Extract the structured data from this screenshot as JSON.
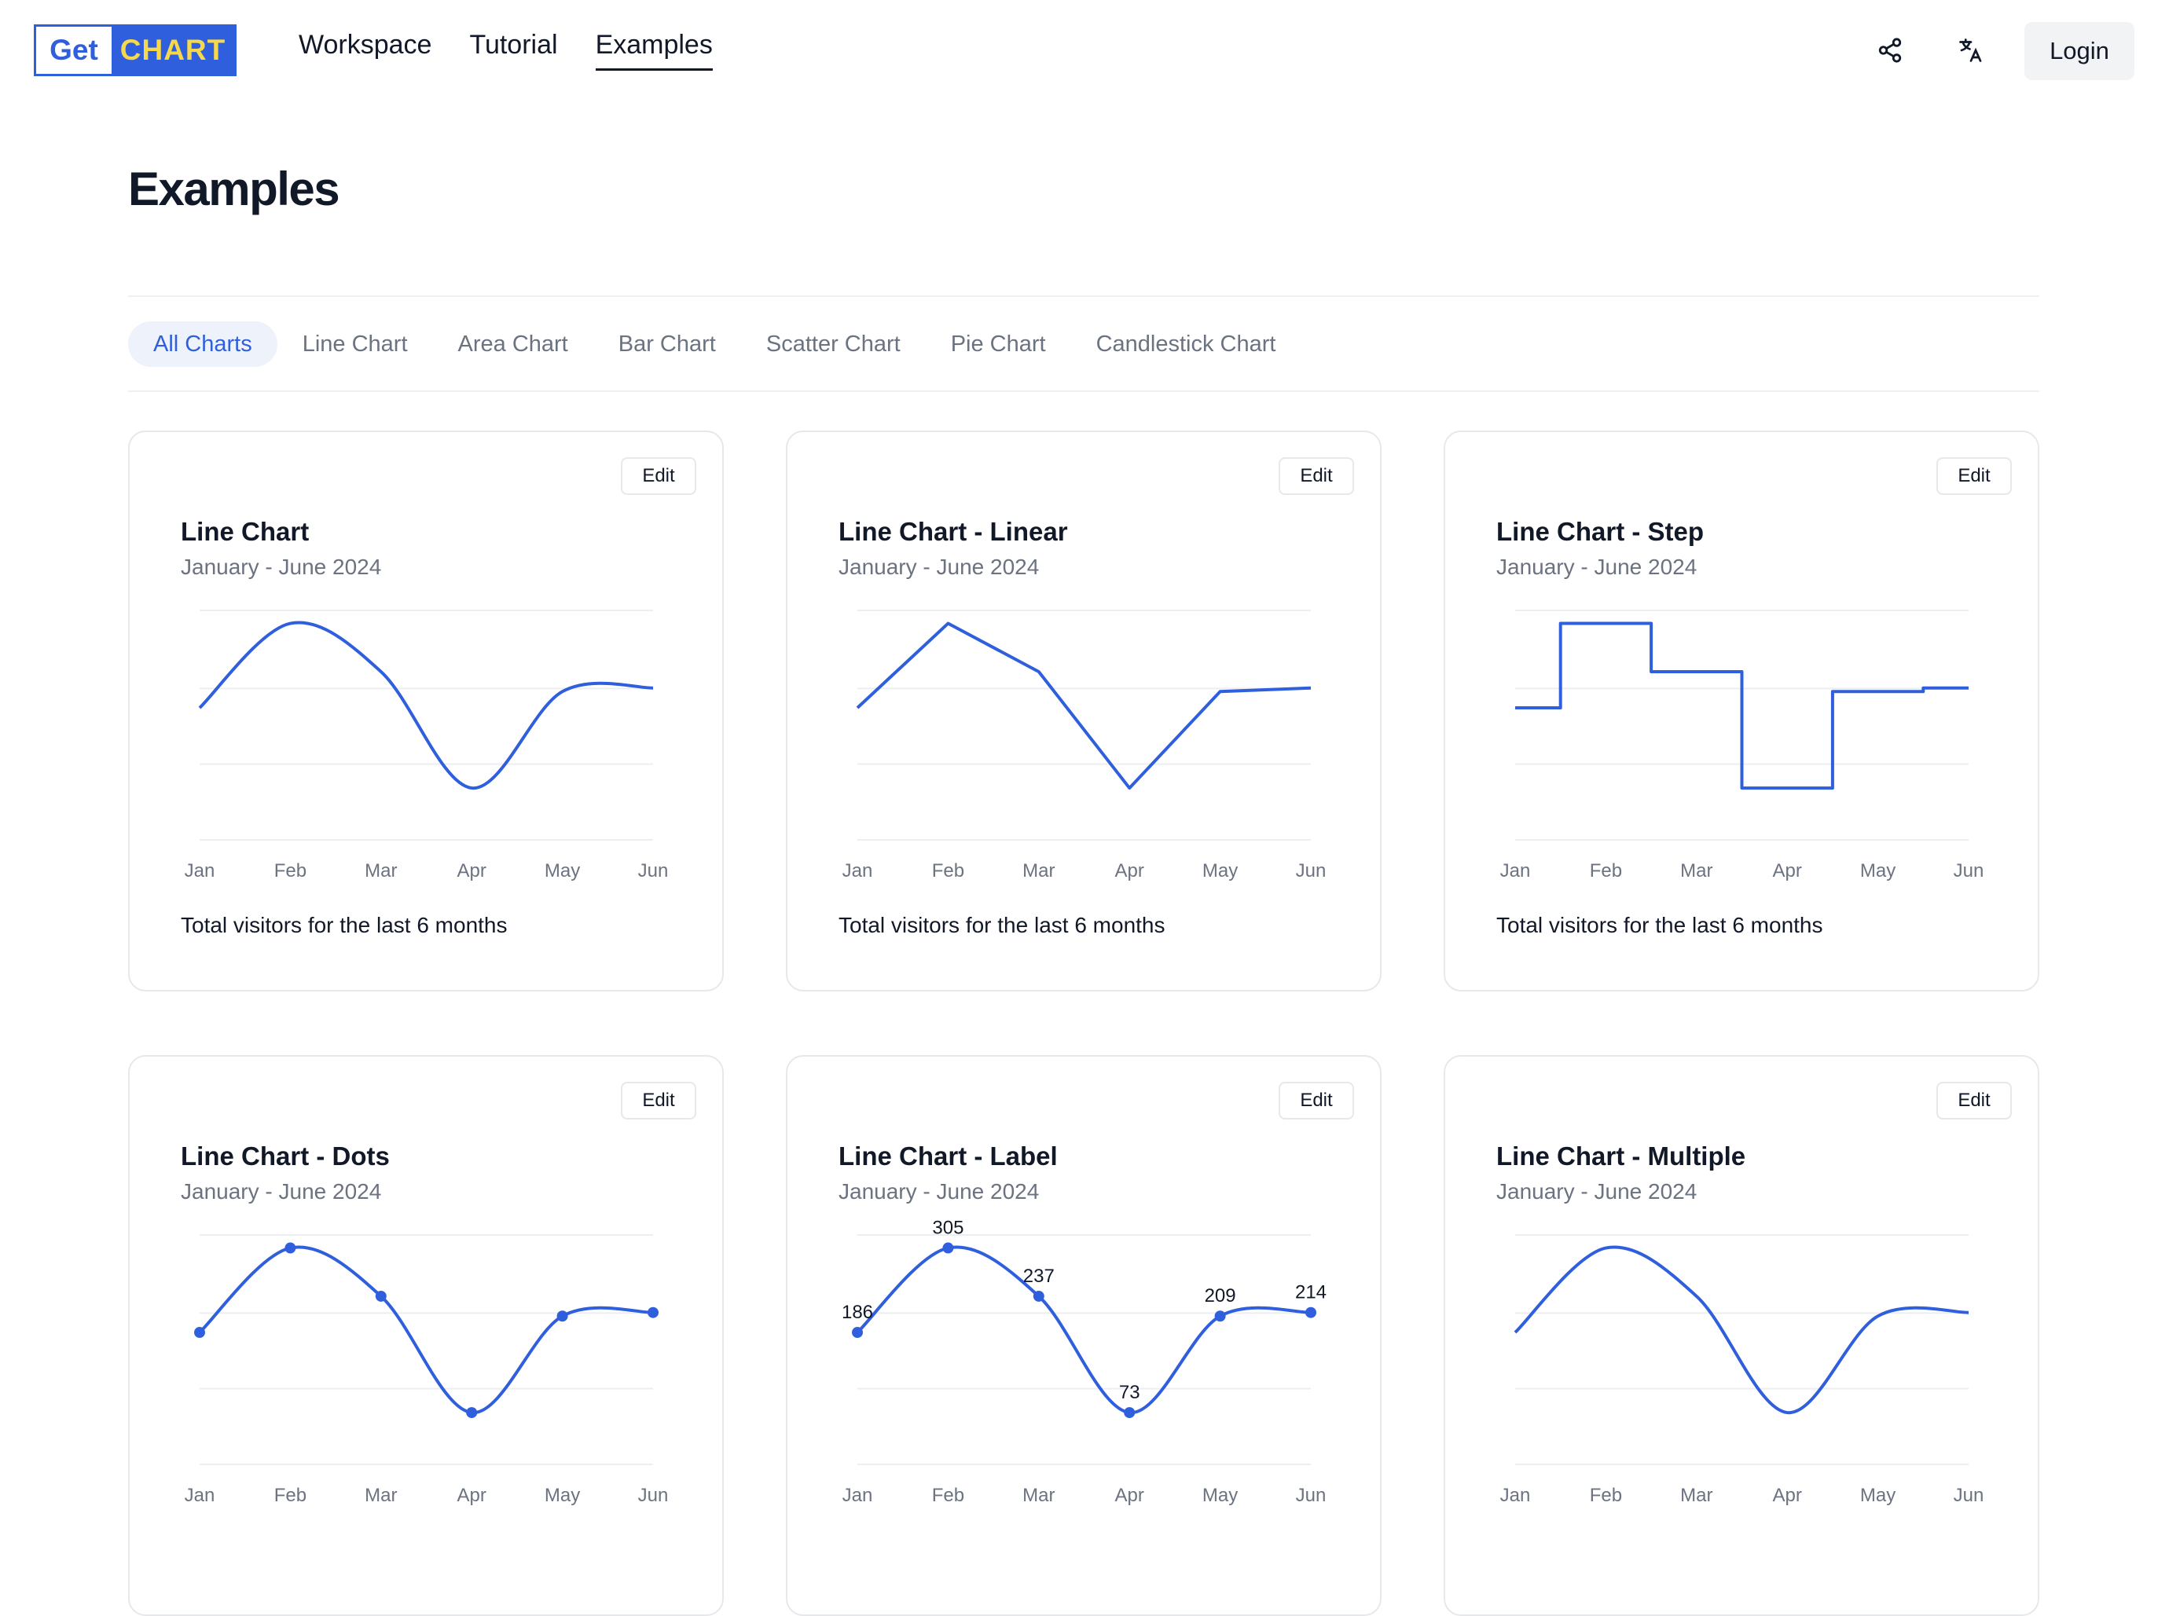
{
  "nav": {
    "logo_left": "Get",
    "logo_right": "CHART",
    "links": [
      "Workspace",
      "Tutorial",
      "Examples"
    ],
    "active": "Examples",
    "login": "Login"
  },
  "page": {
    "title": "Examples"
  },
  "filters": [
    "All Charts",
    "Line Chart",
    "Area Chart",
    "Bar Chart",
    "Scatter Chart",
    "Pie Chart",
    "Candlestick Chart"
  ],
  "edit_label": "Edit",
  "colors": {
    "accent": "#2f5fdc",
    "grid": "#eceef1",
    "muted": "#6b7280"
  },
  "cards": [
    {
      "title": "Line Chart",
      "subtitle": "January - June 2024",
      "footer": "Total visitors for the last 6 months",
      "variant": "natural"
    },
    {
      "title": "Line Chart - Linear",
      "subtitle": "January - June 2024",
      "footer": "Total visitors for the last 6 months",
      "variant": "linear"
    },
    {
      "title": "Line Chart - Step",
      "subtitle": "January - June 2024",
      "footer": "Total visitors for the last 6 months",
      "variant": "step"
    },
    {
      "title": "Line Chart - Dots",
      "subtitle": "January - June 2024",
      "footer": "",
      "variant": "dots"
    },
    {
      "title": "Line Chart - Label",
      "subtitle": "January - June 2024",
      "footer": "",
      "variant": "label"
    },
    {
      "title": "Line Chart - Multiple",
      "subtitle": "January - June 2024",
      "footer": "",
      "variant": "natural"
    }
  ],
  "chart_data": {
    "type": "line",
    "categories": [
      "Jan",
      "Feb",
      "Mar",
      "Apr",
      "May",
      "Jun"
    ],
    "series": [
      {
        "values": [
          186,
          305,
          237,
          73,
          209,
          214
        ]
      }
    ],
    "ylim": [
      0,
      320
    ],
    "grid": true,
    "data_labels_visible": [
      "305",
      "237",
      "209",
      "214"
    ]
  }
}
